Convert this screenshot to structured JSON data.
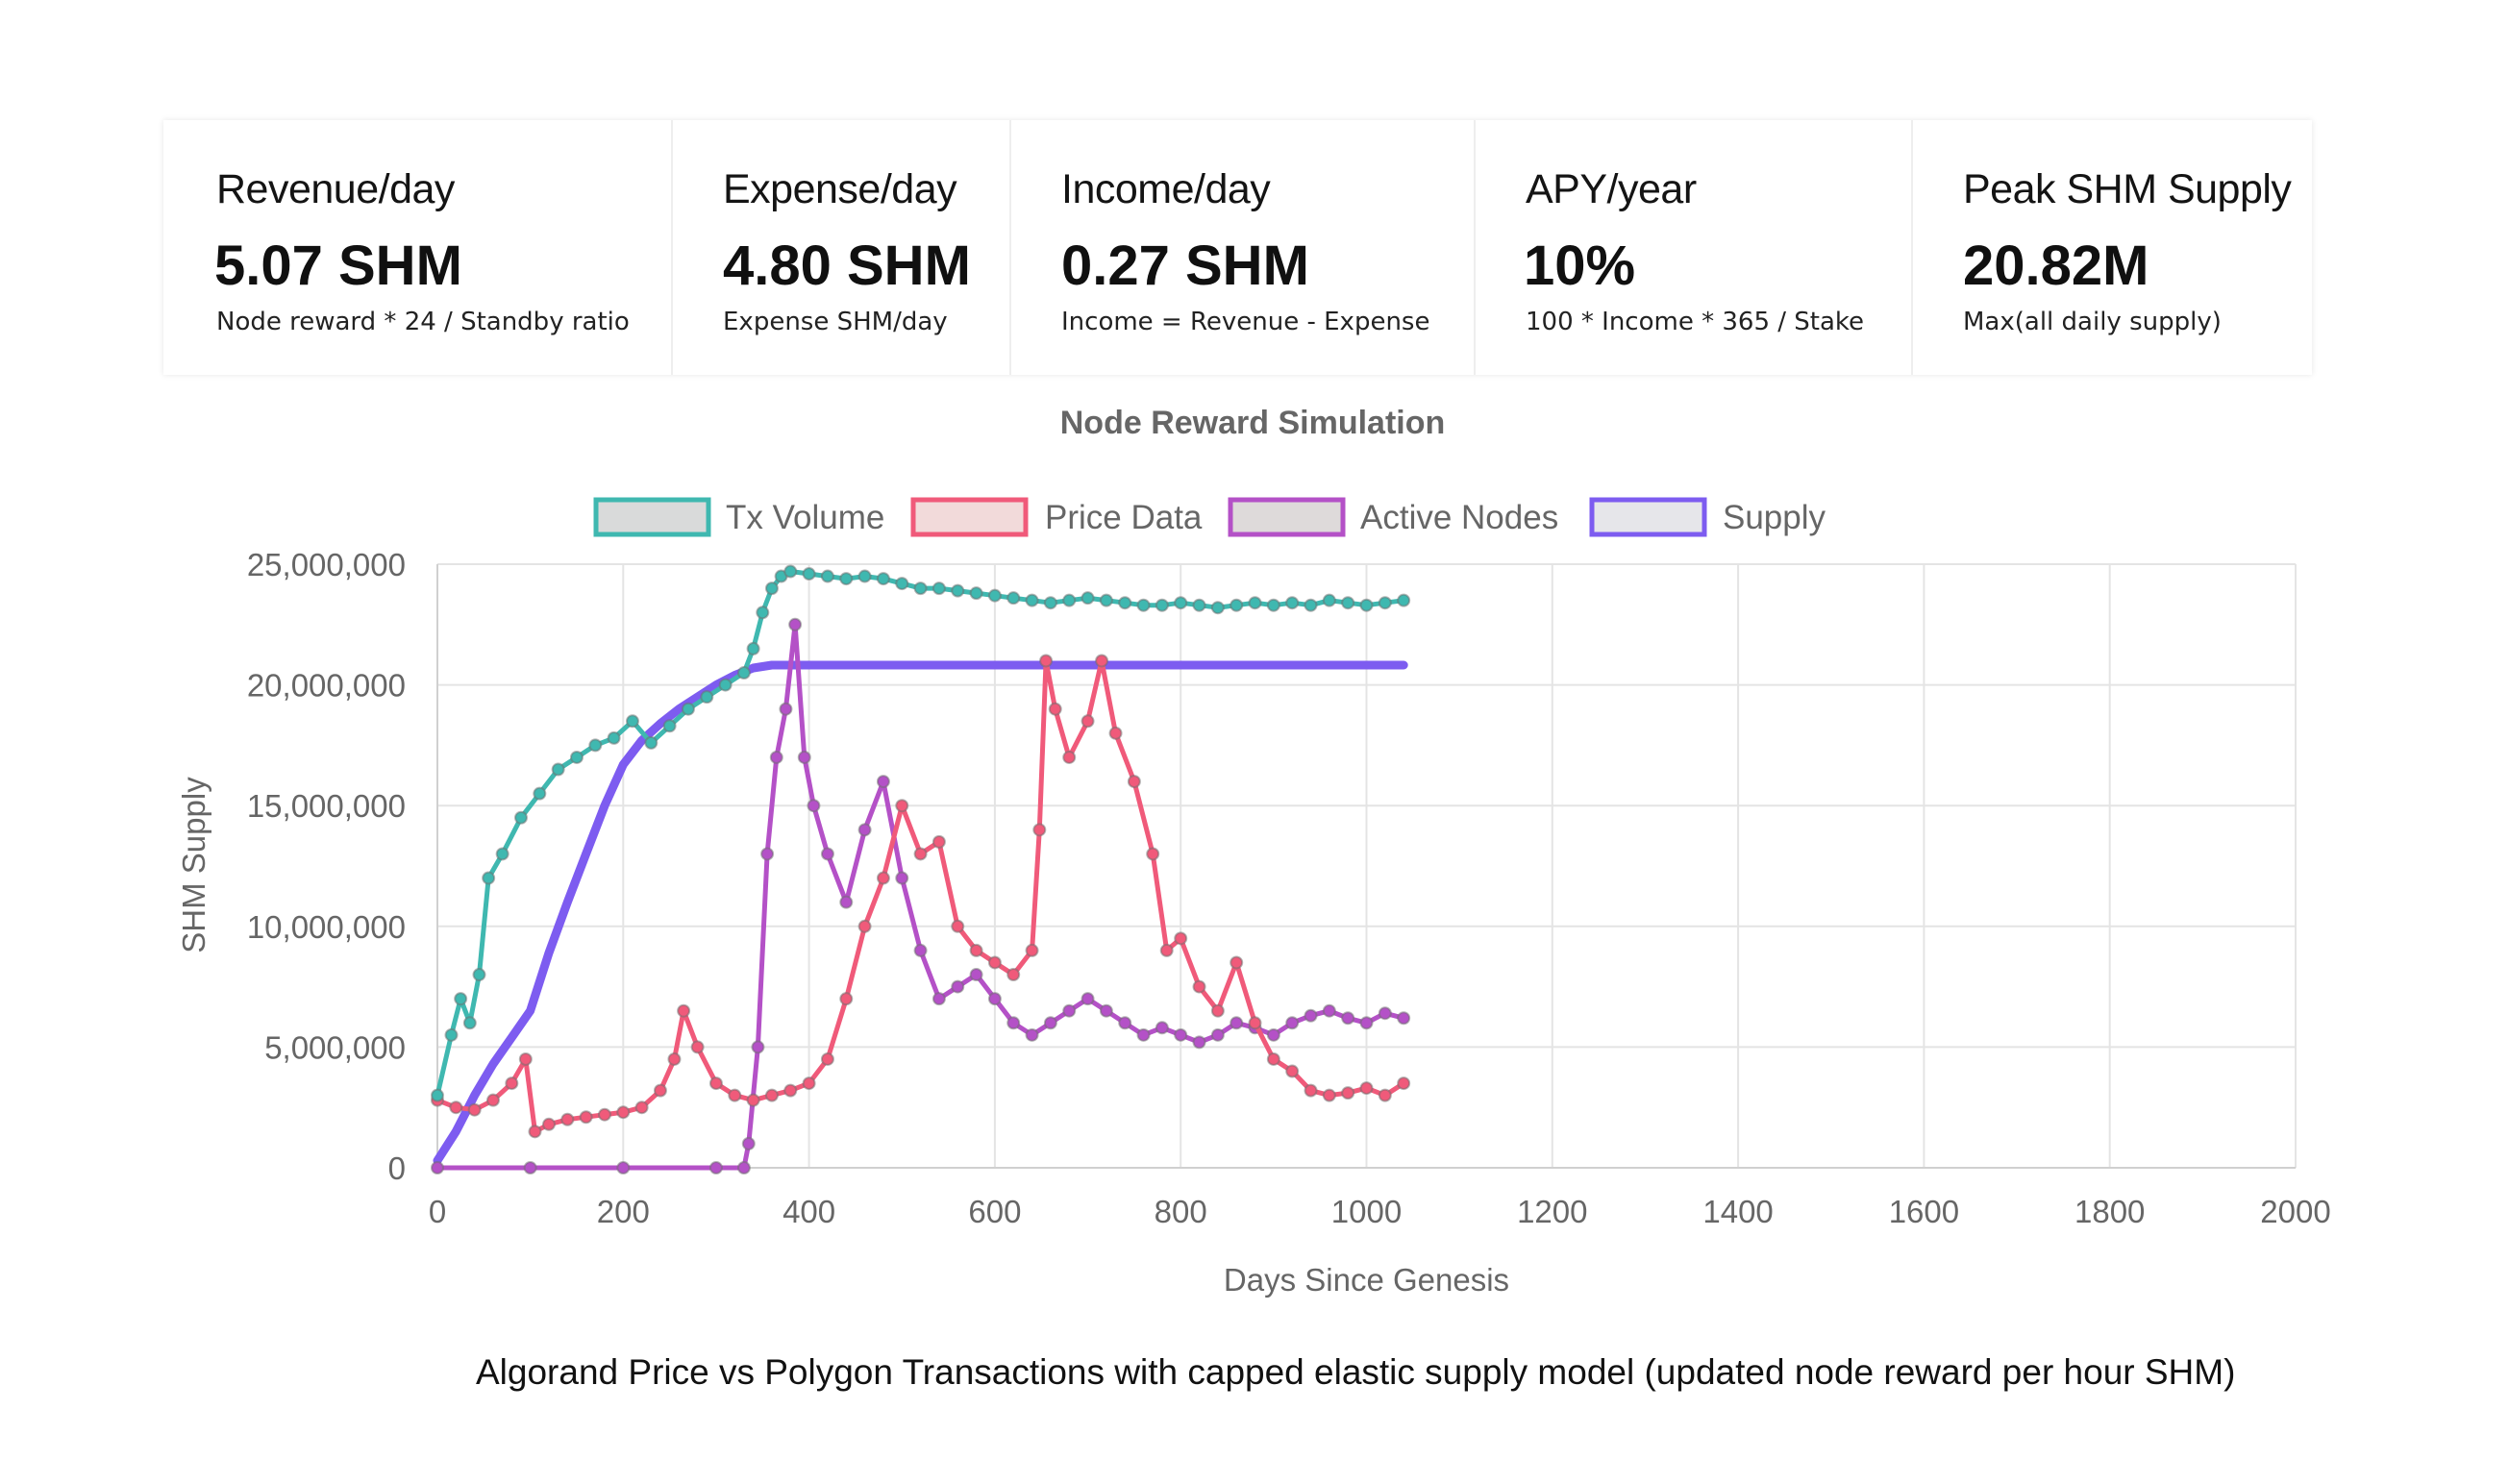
{
  "stats": [
    {
      "label": "Revenue/day",
      "value": "5.07 SHM",
      "sub": "Node reward * 24 / Standby ratio"
    },
    {
      "label": "Expense/day",
      "value": "4.80 SHM",
      "sub": "Expense  SHM/day"
    },
    {
      "label": "Income/day",
      "value": "0.27 SHM",
      "sub": "Income = Revenue - Expense"
    },
    {
      "label": "APY/year",
      "value": "10%",
      "sub": "100 * Income * 365 / Stake"
    },
    {
      "label": "Peak SHM Supply",
      "value": "20.82M",
      "sub": "Max(all daily supply)"
    }
  ],
  "caption": "Algorand Price vs Polygon Transactions with capped elastic supply model (updated node reward per hour SHM)",
  "chart_data": {
    "type": "line",
    "title": "Node Reward Simulation",
    "xlabel": "Days Since Genesis",
    "ylabel": "SHM Supply",
    "xlim": [
      0,
      2000
    ],
    "ylim": [
      0,
      25000000
    ],
    "x_ticks": [
      0,
      200,
      400,
      600,
      800,
      1000,
      1200,
      1400,
      1600,
      1800,
      2000
    ],
    "x_tick_labels": [
      "0",
      "200",
      "400",
      "600",
      "800",
      "1000",
      "1200",
      "1400",
      "1600",
      "1800",
      "2000"
    ],
    "y_ticks": [
      0,
      5000000,
      10000000,
      15000000,
      20000000,
      25000000
    ],
    "y_tick_labels": [
      "0",
      "5,000,000",
      "10,000,000",
      "15,000,000",
      "20,000,000",
      "25,000,000"
    ],
    "grid": true,
    "legend_position": "top",
    "series": [
      {
        "name": "Tx Volume",
        "color": "#3fb8b0",
        "fill": "#d9dada",
        "x": [
          0,
          15,
          25,
          35,
          45,
          55,
          70,
          90,
          110,
          130,
          150,
          170,
          190,
          210,
          230,
          250,
          270,
          290,
          310,
          330,
          340,
          350,
          360,
          370,
          380,
          400,
          420,
          440,
          460,
          480,
          500,
          520,
          540,
          560,
          580,
          600,
          620,
          640,
          660,
          680,
          700,
          720,
          740,
          760,
          780,
          800,
          820,
          840,
          860,
          880,
          900,
          920,
          940,
          960,
          980,
          1000,
          1020,
          1040
        ],
        "y": [
          3000000,
          5500000,
          7000000,
          6000000,
          8000000,
          12000000,
          13000000,
          14500000,
          15500000,
          16500000,
          17000000,
          17500000,
          17800000,
          18500000,
          17600000,
          18300000,
          19000000,
          19500000,
          20000000,
          20500000,
          21500000,
          23000000,
          24000000,
          24500000,
          24700000,
          24600000,
          24500000,
          24400000,
          24500000,
          24400000,
          24200000,
          24000000,
          24000000,
          23900000,
          23800000,
          23700000,
          23600000,
          23500000,
          23400000,
          23500000,
          23600000,
          23500000,
          23400000,
          23300000,
          23300000,
          23400000,
          23300000,
          23200000,
          23300000,
          23400000,
          23300000,
          23400000,
          23300000,
          23500000,
          23400000,
          23300000,
          23400000,
          23500000
        ]
      },
      {
        "name": "Price Data",
        "color": "#f05a7a",
        "fill": "#f2dada",
        "x": [
          0,
          20,
          40,
          60,
          80,
          95,
          105,
          120,
          140,
          160,
          180,
          200,
          220,
          240,
          255,
          265,
          280,
          300,
          320,
          340,
          360,
          380,
          400,
          420,
          440,
          460,
          480,
          500,
          520,
          540,
          560,
          580,
          600,
          620,
          640,
          648,
          655,
          665,
          680,
          700,
          715,
          730,
          750,
          770,
          785,
          800,
          820,
          840,
          860,
          880,
          900,
          920,
          940,
          960,
          980,
          1000,
          1020,
          1040
        ],
        "y": [
          2800000,
          2500000,
          2400000,
          2800000,
          3500000,
          4500000,
          1500000,
          1800000,
          2000000,
          2100000,
          2200000,
          2300000,
          2500000,
          3200000,
          4500000,
          6500000,
          5000000,
          3500000,
          3000000,
          2800000,
          3000000,
          3200000,
          3500000,
          4500000,
          7000000,
          10000000,
          12000000,
          15000000,
          13000000,
          13500000,
          10000000,
          9000000,
          8500000,
          8000000,
          9000000,
          14000000,
          21000000,
          19000000,
          17000000,
          18500000,
          21000000,
          18000000,
          16000000,
          13000000,
          9000000,
          9500000,
          7500000,
          6500000,
          8500000,
          6000000,
          4500000,
          4000000,
          3200000,
          3000000,
          3100000,
          3300000,
          3000000,
          3500000
        ]
      },
      {
        "name": "Active Nodes",
        "color": "#b451c7",
        "fill": "#dedada",
        "x": [
          0,
          100,
          200,
          300,
          330,
          335,
          345,
          355,
          365,
          375,
          385,
          395,
          405,
          420,
          440,
          460,
          480,
          500,
          520,
          540,
          560,
          580,
          600,
          620,
          640,
          660,
          680,
          700,
          720,
          740,
          760,
          780,
          800,
          820,
          840,
          860,
          880,
          900,
          920,
          940,
          960,
          980,
          1000,
          1020,
          1040
        ],
        "y": [
          0,
          0,
          0,
          0,
          0,
          1000000,
          5000000,
          13000000,
          17000000,
          19000000,
          22500000,
          17000000,
          15000000,
          13000000,
          11000000,
          14000000,
          16000000,
          12000000,
          9000000,
          7000000,
          7500000,
          8000000,
          7000000,
          6000000,
          5500000,
          6000000,
          6500000,
          7000000,
          6500000,
          6000000,
          5500000,
          5800000,
          5500000,
          5200000,
          5500000,
          6000000,
          5800000,
          5500000,
          6000000,
          6300000,
          6500000,
          6200000,
          6000000,
          6400000,
          6200000
        ]
      },
      {
        "name": "Supply",
        "color": "#7d5cf0",
        "fill": "#e6e6ea",
        "x": [
          0,
          20,
          40,
          60,
          80,
          100,
          120,
          140,
          160,
          180,
          200,
          220,
          240,
          260,
          280,
          300,
          320,
          340,
          360,
          380,
          400,
          450,
          500,
          600,
          700,
          800,
          900,
          1000,
          1040
        ],
        "y": [
          300000,
          1500000,
          3000000,
          4300000,
          5400000,
          6500000,
          8900000,
          11000000,
          13000000,
          15000000,
          16700000,
          17700000,
          18400000,
          19000000,
          19500000,
          20000000,
          20400000,
          20700000,
          20820000,
          20820000,
          20820000,
          20820000,
          20820000,
          20820000,
          20820000,
          20820000,
          20820000,
          20820000,
          20820000
        ]
      }
    ]
  }
}
